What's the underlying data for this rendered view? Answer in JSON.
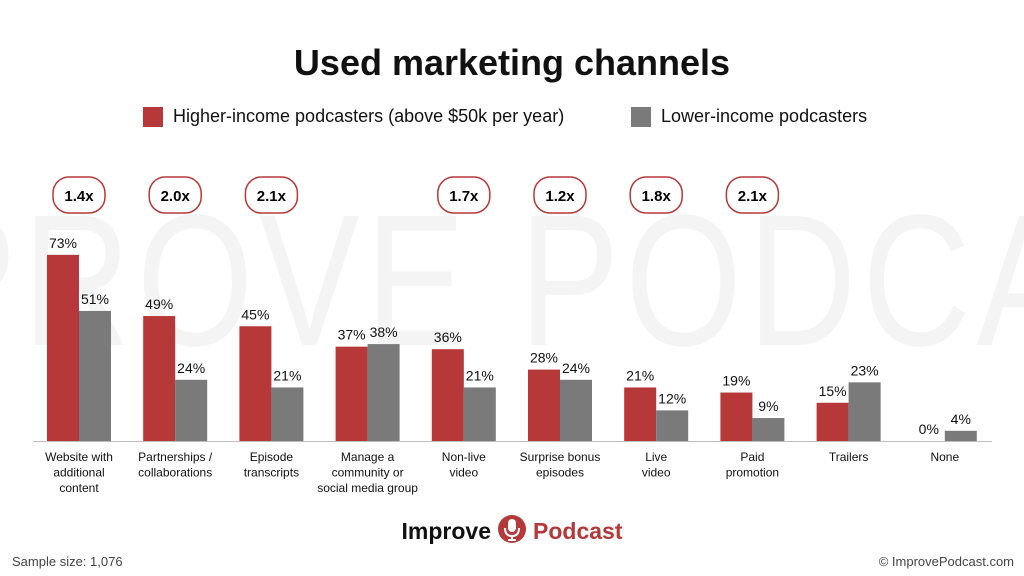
{
  "watermark": "IMPROVE PODCAST",
  "logo": {
    "word1": "Improve",
    "word2": "Podcast"
  },
  "footer": {
    "sample_size": "Sample size: 1,076",
    "copyright": "© ImprovePodcast.com"
  },
  "colors": {
    "higher": "#b73838",
    "lower": "#7a7a7a",
    "badge_border": "#b73838"
  },
  "chart_data": {
    "type": "bar",
    "title": "Used marketing channels",
    "categories": [
      [
        "Website with",
        "additional",
        "content"
      ],
      [
        "Partnerships /",
        "collaborations"
      ],
      [
        "Episode",
        "transcripts"
      ],
      [
        "Manage a",
        "community or",
        "social media group"
      ],
      [
        "Non-live",
        "video"
      ],
      [
        "Surprise bonus",
        "episodes"
      ],
      [
        "Live",
        "video"
      ],
      [
        "Paid",
        "promotion"
      ],
      [
        "Trailers"
      ],
      [
        "None"
      ]
    ],
    "series": [
      {
        "name": "Higher-income podcasters (above $50k per year)",
        "values": [
          73,
          49,
          45,
          37,
          36,
          28,
          21,
          19,
          15,
          0
        ]
      },
      {
        "name": "Lower-income podcasters",
        "values": [
          51,
          24,
          21,
          38,
          21,
          24,
          12,
          9,
          23,
          4
        ]
      }
    ],
    "value_suffix": "%",
    "ratios": [
      "1.4x",
      "2.0x",
      "2.1x",
      "",
      "1.7x",
      "1.2x",
      "1.8x",
      "2.1x",
      "",
      ""
    ],
    "ylim": [
      0,
      100
    ],
    "xlabel": "",
    "ylabel": "",
    "legend_position": "top",
    "grid": false
  }
}
